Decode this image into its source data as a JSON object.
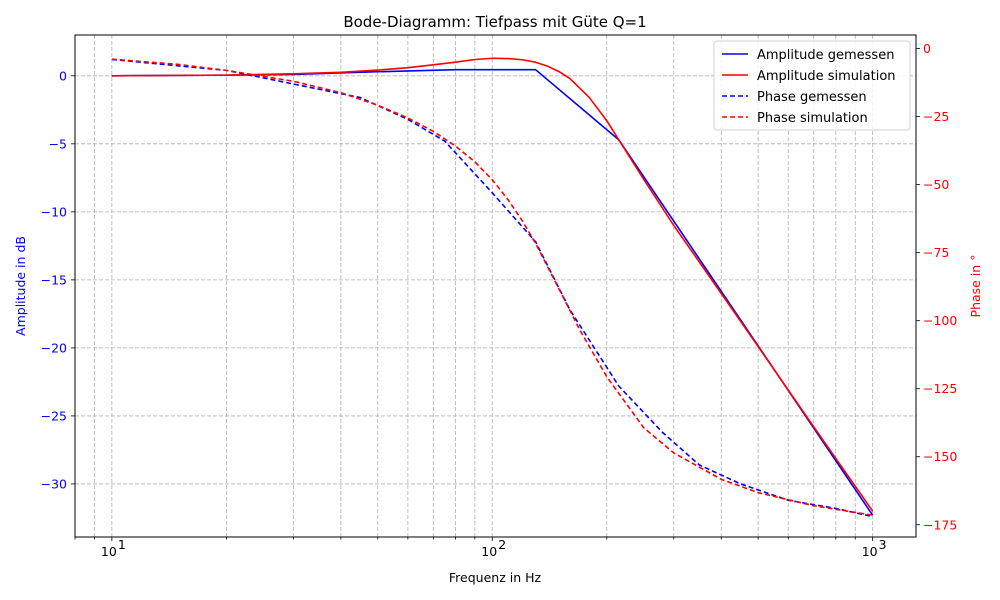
{
  "chart_data": {
    "type": "line",
    "title": "Bode-Diagramm: Tiefpass mit Güte Q=1",
    "xlabel": "Frequenz in Hz",
    "ylabel_left": "Amplitude in dB",
    "ylabel_right": "Phase in °",
    "x_scale": "log",
    "xlim": [
      8,
      1300
    ],
    "ylim_left": [
      -33.9,
      3.0
    ],
    "ylim_right": [
      -179.5,
      5.0
    ],
    "x_ticks": [
      10,
      100,
      1000
    ],
    "x_tick_labels": [
      "10",
      "10",
      "10"
    ],
    "x_tick_exponents": [
      "1",
      "2",
      "3"
    ],
    "y_ticks_left": [
      0,
      -5,
      -10,
      -15,
      -20,
      -25,
      -30
    ],
    "y_tick_labels_left": [
      "0",
      "−5",
      "−10",
      "−15",
      "−20",
      "−25",
      "−30"
    ],
    "y_ticks_right": [
      0,
      -25,
      -50,
      -75,
      -100,
      -125,
      -150,
      -175
    ],
    "y_tick_labels_right": [
      "0",
      "−25",
      "−50",
      "−75",
      "−100",
      "−125",
      "−150",
      "−175"
    ],
    "grid": true,
    "legend_placement": "top-right",
    "colors": {
      "left_axis": "#0000ff",
      "right_axis": "#ff0000",
      "measured": "#0000ff",
      "simulated": "#ff0000",
      "grid": "#b0b0b0"
    },
    "series": [
      {
        "name": "Amplitude gemessen",
        "axis": "left",
        "style": "solid",
        "color": "#0000ff",
        "x": [
          10,
          20,
          30,
          50,
          80,
          100,
          130,
          215,
          1000
        ],
        "y": [
          0.0,
          0.05,
          0.1,
          0.3,
          0.45,
          0.45,
          0.45,
          -4.7,
          -32.3
        ]
      },
      {
        "name": "Amplitude simulation",
        "axis": "left",
        "style": "solid",
        "color": "#ff0000",
        "x": [
          10,
          20,
          30,
          40,
          50,
          60,
          70,
          80,
          90,
          100,
          110,
          120,
          130,
          140,
          150,
          160,
          180,
          200,
          250,
          300,
          400,
          500,
          700,
          1000
        ],
        "y": [
          0.0,
          0.05,
          0.15,
          0.26,
          0.42,
          0.6,
          0.81,
          1.0,
          1.2,
          1.29,
          1.27,
          1.18,
          1.0,
          0.7,
          0.3,
          -0.2,
          -1.6,
          -3.3,
          -7.6,
          -11.0,
          -16.0,
          -19.9,
          -25.8,
          -32.0
        ]
      },
      {
        "name": "Phase gemessen",
        "axis": "right",
        "style": "dashed",
        "color": "#0000ff",
        "x": [
          10,
          20,
          30,
          45,
          60,
          75,
          100,
          130,
          160,
          215,
          280,
          350,
          450,
          600,
          800,
          1000
        ],
        "y": [
          -4,
          -8,
          -13,
          -18,
          -26,
          -34,
          -53,
          -71,
          -96,
          -124,
          -141,
          -153,
          -160,
          -166,
          -169,
          -172
        ]
      },
      {
        "name": "Phase simulation",
        "axis": "right",
        "style": "dashed",
        "color": "#ff0000",
        "x": [
          10,
          15,
          20,
          30,
          40,
          50,
          60,
          70,
          80,
          90,
          100,
          110,
          120,
          130,
          150,
          170,
          200,
          250,
          300,
          400,
          500,
          700,
          1000
        ],
        "y": [
          -3.9,
          -5.8,
          -8.0,
          -12.0,
          -16.2,
          -20.8,
          -25.5,
          -30.4,
          -35.8,
          -41.6,
          -48.2,
          -55.5,
          -63.3,
          -71.6,
          -88.5,
          -103.5,
          -120.6,
          -139.3,
          -148.6,
          -158.3,
          -163.2,
          -168.0,
          -171.5
        ]
      }
    ]
  }
}
